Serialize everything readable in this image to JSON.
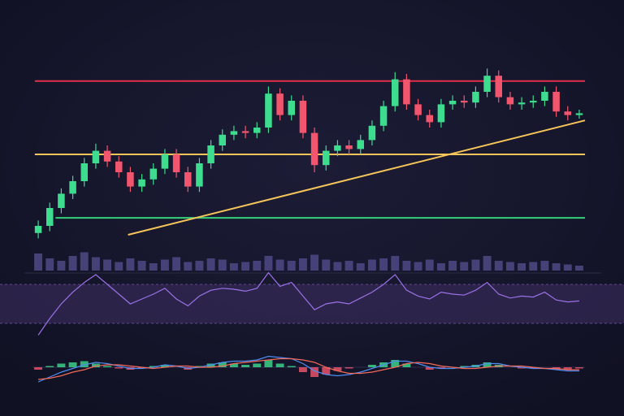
{
  "chart_data": [
    {
      "type": "candlestick",
      "xlim": [
        0,
        48
      ],
      "ylim": [
        0,
        100
      ],
      "up_color": "#3ddc8f",
      "down_color": "#f2566e",
      "open": [
        6,
        10,
        20,
        28,
        35,
        45,
        52,
        46,
        40,
        32,
        36,
        42,
        50,
        40,
        32,
        45,
        55,
        61,
        63,
        62,
        65,
        84,
        72,
        80,
        62,
        44,
        52,
        55,
        53,
        58,
        66,
        77,
        92,
        78,
        72,
        68,
        78,
        80,
        79,
        85,
        94,
        82,
        78,
        79,
        80,
        85,
        74,
        72
      ],
      "high": [
        13,
        23,
        31,
        38,
        48,
        56,
        55,
        49,
        43,
        39,
        45,
        53,
        53,
        43,
        48,
        58,
        64,
        66,
        66,
        68,
        88,
        87,
        83,
        83,
        65,
        55,
        58,
        58,
        61,
        69,
        80,
        96,
        95,
        81,
        75,
        81,
        83,
        83,
        88,
        98,
        97,
        85,
        82,
        83,
        88,
        88,
        77,
        75
      ],
      "low": [
        3,
        7,
        17,
        25,
        32,
        42,
        43,
        37,
        29,
        29,
        33,
        39,
        37,
        29,
        29,
        42,
        52,
        58,
        59,
        59,
        62,
        69,
        69,
        59,
        40,
        41,
        49,
        50,
        50,
        55,
        63,
        74,
        75,
        69,
        65,
        65,
        75,
        76,
        76,
        82,
        79,
        75,
        75,
        76,
        77,
        71,
        69,
        70
      ],
      "close": [
        10,
        20,
        28,
        35,
        45,
        52,
        46,
        40,
        32,
        36,
        42,
        50,
        40,
        32,
        45,
        55,
        61,
        63,
        62,
        65,
        84,
        72,
        80,
        62,
        44,
        52,
        55,
        53,
        58,
        66,
        77,
        92,
        78,
        72,
        68,
        78,
        80,
        79,
        85,
        94,
        82,
        78,
        79,
        80,
        85,
        74,
        72,
        73
      ],
      "levels": [
        {
          "value": 91,
          "x": 0.2,
          "color": "#e0304a"
        },
        {
          "value": 50,
          "x": 0.2,
          "color": "#f7c55a"
        },
        {
          "value": 14.5,
          "x": 2,
          "color": "#35d07a"
        }
      ],
      "trendline": {
        "x": [
          8.3,
          48
        ],
        "values": [
          5,
          69
        ],
        "color": "#f7c55a"
      }
    },
    {
      "type": "bar",
      "xlim": [
        0,
        48
      ],
      "ylim": [
        0,
        20
      ],
      "color": "#4f4a86",
      "values": [
        14,
        10,
        8,
        12,
        15,
        11,
        9,
        7,
        10,
        8,
        6,
        9,
        11,
        7,
        8,
        10,
        9,
        6,
        7,
        8,
        12,
        9,
        8,
        10,
        13,
        9,
        7,
        8,
        6,
        9,
        10,
        12,
        8,
        7,
        9,
        6,
        8,
        7,
        9,
        12,
        8,
        7,
        6,
        7,
        8,
        6,
        5,
        4
      ]
    },
    {
      "type": "line",
      "xlim": [
        0,
        48
      ],
      "ylim": [
        0,
        90
      ],
      "band": [
        30,
        70
      ],
      "color": "#9b72e6",
      "band_color": "#3a2d5e",
      "values": [
        18,
        35,
        50,
        62,
        72,
        80,
        70,
        60,
        50,
        55,
        60,
        66,
        55,
        48,
        58,
        64,
        66,
        65,
        63,
        66,
        82,
        68,
        72,
        58,
        44,
        50,
        52,
        50,
        56,
        62,
        70,
        80,
        64,
        58,
        55,
        62,
        60,
        59,
        64,
        72,
        60,
        56,
        58,
        57,
        62,
        54,
        52,
        53
      ]
    },
    {
      "type": "macd",
      "xlim": [
        0,
        48
      ],
      "ylim": [
        -15,
        15
      ],
      "up_color": "#3ddc8f",
      "down_color": "#f2566e",
      "histogram": [
        -2,
        1,
        3,
        4,
        5,
        3,
        1,
        -1,
        -2,
        -1,
        1,
        2,
        0,
        -2,
        1,
        3,
        4,
        3,
        2,
        3,
        6,
        3,
        1,
        -4,
        -8,
        -6,
        -3,
        -1,
        0,
        2,
        4,
        6,
        3,
        0,
        -2,
        -1,
        0,
        1,
        2,
        4,
        2,
        0,
        -1,
        -1,
        0,
        -2,
        -2,
        -1
      ],
      "series": [
        {
          "color": "#4f8cf0",
          "values": [
            -12,
            -8,
            -4,
            -1,
            2,
            4,
            3,
            1,
            -1,
            -1,
            0,
            2,
            1,
            -1,
            0,
            2,
            4,
            5,
            5,
            6,
            9,
            8,
            7,
            3,
            -3,
            -6,
            -7,
            -6,
            -4,
            -1,
            2,
            5,
            5,
            3,
            0,
            -1,
            -1,
            0,
            1,
            3,
            3,
            1,
            0,
            -1,
            -1,
            -2,
            -3,
            -3
          ]
        },
        {
          "color": "#f26a5a",
          "values": [
            -10,
            -9,
            -7,
            -4,
            -2,
            1,
            2,
            2,
            1,
            0,
            -1,
            0,
            1,
            1,
            0,
            0,
            1,
            3,
            4,
            5,
            6,
            7,
            7,
            6,
            4,
            0,
            -3,
            -5,
            -5,
            -4,
            -2,
            0,
            3,
            4,
            3,
            1,
            0,
            -1,
            -1,
            0,
            1,
            1,
            1,
            0,
            -1,
            -1,
            -2,
            -2
          ]
        }
      ]
    }
  ]
}
